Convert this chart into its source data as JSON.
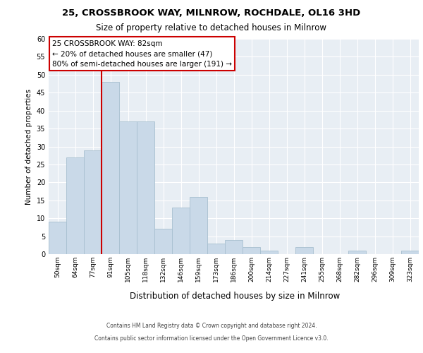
{
  "title1": "25, CROSSBROOK WAY, MILNROW, ROCHDALE, OL16 3HD",
  "title2": "Size of property relative to detached houses in Milnrow",
  "xlabel": "Distribution of detached houses by size in Milnrow",
  "ylabel": "Number of detached properties",
  "categories": [
    "50sqm",
    "64sqm",
    "77sqm",
    "91sqm",
    "105sqm",
    "118sqm",
    "132sqm",
    "146sqm",
    "159sqm",
    "173sqm",
    "186sqm",
    "200sqm",
    "214sqm",
    "227sqm",
    "241sqm",
    "255sqm",
    "268sqm",
    "282sqm",
    "296sqm",
    "309sqm",
    "323sqm"
  ],
  "values": [
    9,
    27,
    29,
    48,
    37,
    37,
    7,
    13,
    16,
    3,
    4,
    2,
    1,
    0,
    2,
    0,
    0,
    1,
    0,
    0,
    1
  ],
  "bar_color": "#c9d9e8",
  "bar_edge_color": "#a8c0d0",
  "vline_color": "#cc0000",
  "ylim": [
    0,
    60
  ],
  "yticks": [
    0,
    5,
    10,
    15,
    20,
    25,
    30,
    35,
    40,
    45,
    50,
    55,
    60
  ],
  "annotation_text": "25 CROSSBROOK WAY: 82sqm\n← 20% of detached houses are smaller (47)\n80% of semi-detached houses are larger (191) →",
  "annotation_box_color": "#ffffff",
  "annotation_box_edge": "#cc0000",
  "footer1": "Contains HM Land Registry data © Crown copyright and database right 2024.",
  "footer2": "Contains public sector information licensed under the Open Government Licence v3.0.",
  "background_color": "#e8eef4",
  "title1_fontsize": 9.5,
  "title2_fontsize": 8.5,
  "ylabel_fontsize": 7.5,
  "xlabel_fontsize": 8.5,
  "tick_fontsize": 7,
  "ann_fontsize": 7.5,
  "footer_fontsize": 5.5,
  "vline_bar_index": 2
}
